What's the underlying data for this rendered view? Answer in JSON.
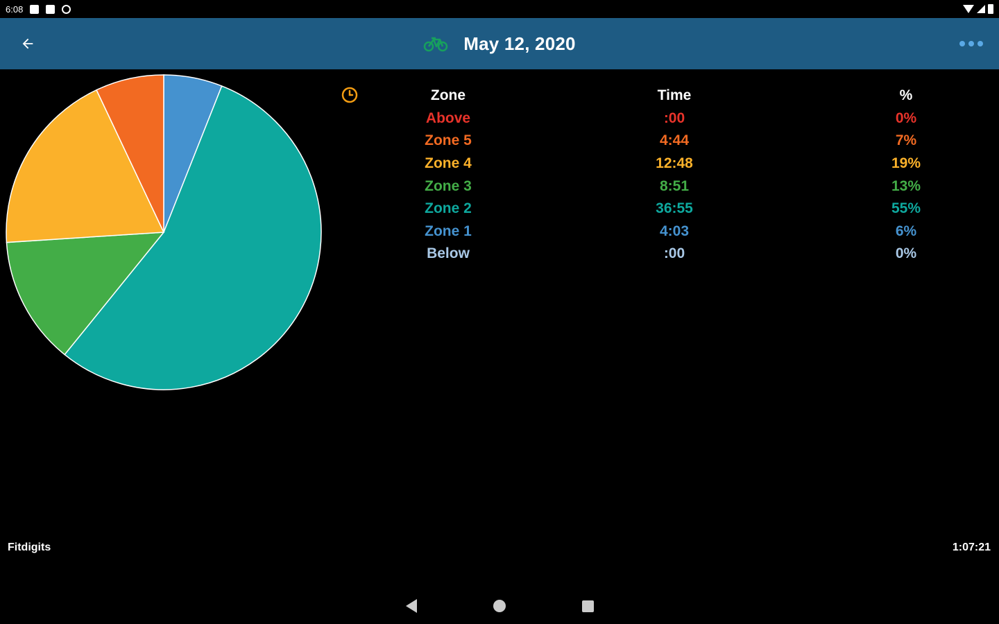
{
  "status_bar": {
    "time": "6:08"
  },
  "app_bar": {
    "title": "May 12, 2020",
    "back_icon": "arrow-back-icon",
    "activity_icon": "bike-icon",
    "more_icon": "more-horiz-icon",
    "background": "#1e5b83"
  },
  "table": {
    "headers": {
      "zone": "Zone",
      "time": "Time",
      "percent": "%"
    },
    "rows": [
      {
        "zone": "Above",
        "time": ":00",
        "percent": "0%",
        "color": "#e8332a"
      },
      {
        "zone": "Zone 5",
        "time": "4:44",
        "percent": "7%",
        "color": "#f26a22"
      },
      {
        "zone": "Zone 4",
        "time": "12:48",
        "percent": "19%",
        "color": "#fbb12a"
      },
      {
        "zone": "Zone 3",
        "time": "8:51",
        "percent": "13%",
        "color": "#43ad47"
      },
      {
        "zone": "Zone 2",
        "time": "36:55",
        "percent": "55%",
        "color": "#0ea89e"
      },
      {
        "zone": "Zone 1",
        "time": "4:03",
        "percent": "6%",
        "color": "#4592cf"
      },
      {
        "zone": "Below",
        "time": ":00",
        "percent": "0%",
        "color": "#a9c8e6"
      }
    ]
  },
  "chart_data": {
    "type": "pie",
    "slices": [
      {
        "label": "Zone 1",
        "value": 4.05,
        "color": "#4592cf"
      },
      {
        "label": "Zone 2",
        "value": 36.92,
        "color": "#0ea89e"
      },
      {
        "label": "Zone 3",
        "value": 8.85,
        "color": "#43ad47"
      },
      {
        "label": "Zone 4",
        "value": 12.8,
        "color": "#fbb12a"
      },
      {
        "label": "Zone 5",
        "value": 4.73,
        "color": "#f26a22"
      }
    ],
    "start": "top",
    "direction": "clockwise"
  },
  "footer": {
    "brand": "Fitdigits",
    "total_time": "1:07:21"
  },
  "colors": {
    "clock_icon": "#f39c12",
    "bike_icon": "#17a05d"
  }
}
